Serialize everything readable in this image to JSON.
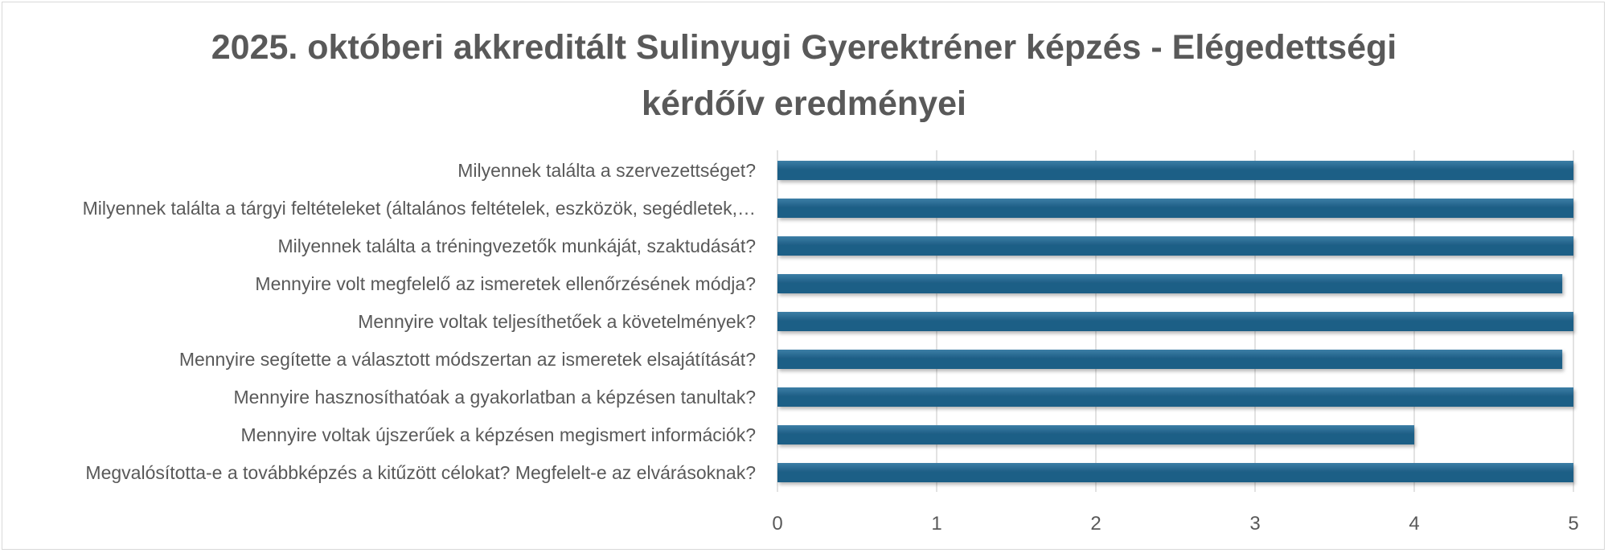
{
  "chart_data": {
    "type": "bar",
    "orientation": "horizontal",
    "title_lines": [
      "2025. októberi akkreditált Sulinyugi Gyerektréner képzés - Elégedettségi",
      "kérdőív eredményei"
    ],
    "categories": [
      "Milyennek találta a szervezettséget?",
      "Milyennek találta a tárgyi feltételeket (általános feltételek, eszközök, segédletek,…",
      "Milyennek találta a tréningvezetők munkáját, szaktudását?",
      "Mennyire volt megfelelő az ismeretek ellenőrzésének módja?",
      "Mennyire voltak teljesíthetőek a követelmények?",
      "Mennyire segítette a választott módszertan az ismeretek elsajátítását?",
      "Mennyire hasznosíthatóak a gyakorlatban a képzésen tanultak?",
      "Mennyire voltak újszerűek a képzésen megismert információk?",
      "Megvalósította-e a továbbképzés a kitűzött célokat? Megfelelt-e az elvárásoknak?"
    ],
    "values": [
      5,
      5,
      5,
      4.93,
      5,
      4.93,
      5,
      4,
      5
    ],
    "xlim": [
      0,
      5
    ],
    "xticks": [
      "0",
      "1",
      "2",
      "3",
      "4",
      "5"
    ],
    "grid": true,
    "bar_color": "#1f5f86",
    "bar_color_light": "#3c7ea6",
    "label_color": "#595959",
    "grid_color": "#d9d9d9"
  }
}
